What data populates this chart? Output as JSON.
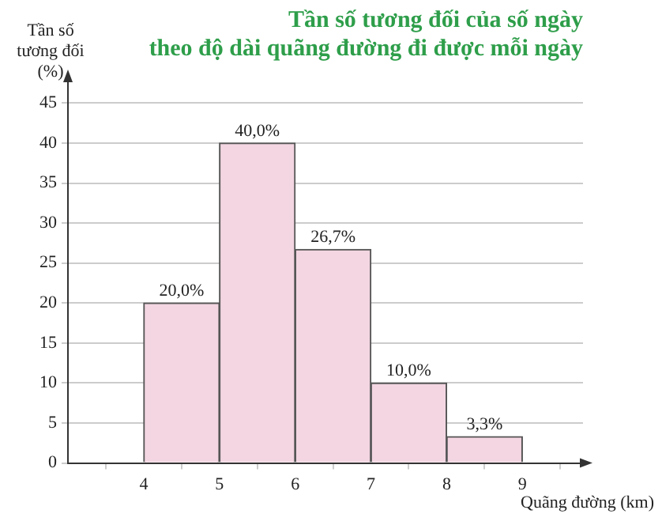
{
  "chart_data": {
    "type": "histogram",
    "title": "Tần số tương đối của số ngày\ntheo độ dài quãng đường đi được mỗi ngày",
    "xlabel": "Quãng đường (km)",
    "ylabel": "Tần số\ntương đối\n(%)",
    "bins": [
      4,
      5,
      6,
      7,
      8,
      9
    ],
    "values": [
      20,
      40,
      26.7,
      10,
      3.3
    ],
    "color": "#f3d6e2",
    "value_labels": [
      "20,0%",
      "40,0%",
      "26,7%",
      "10,0%",
      "3,3%"
    ],
    "xlim": [
      3,
      9.8
    ],
    "xticks": [
      4,
      5,
      6,
      7,
      8,
      9
    ],
    "ylim": [
      0,
      48
    ],
    "yticks": [
      0,
      5,
      10,
      15,
      20,
      25,
      30,
      35,
      40,
      45
    ],
    "grid": "y"
  }
}
